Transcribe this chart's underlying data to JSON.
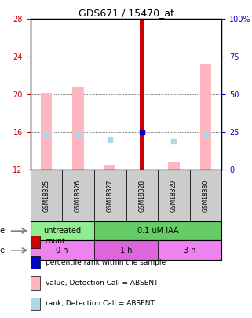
{
  "title": "GDS671 / 15470_at",
  "samples": [
    "GSM18325",
    "GSM18326",
    "GSM18327",
    "GSM18328",
    "GSM18329",
    "GSM18330"
  ],
  "ylim_left": [
    12,
    28
  ],
  "ylim_right": [
    0,
    100
  ],
  "yticks_left": [
    12,
    16,
    20,
    24,
    28
  ],
  "yticks_right": [
    0,
    25,
    50,
    75,
    100
  ],
  "bar_values_pink": [
    20.1,
    20.8,
    12.5,
    null,
    12.8,
    23.2
  ],
  "bar_values_pink_bottom": [
    12,
    12,
    12,
    null,
    12,
    12
  ],
  "bar_values_red": [
    null,
    null,
    null,
    28.0,
    null,
    null
  ],
  "bar_values_red_bottom": [
    null,
    null,
    null,
    12,
    null,
    null
  ],
  "dot_blue_dark": [
    null,
    null,
    null,
    16.0,
    null,
    null
  ],
  "dot_blue_light_y": [
    15.5,
    15.5,
    14.8,
    null,
    14.5,
    15.5
  ],
  "dot_blue_light_rank": [
    24,
    24,
    20,
    null,
    19,
    24
  ],
  "dose_groups": [
    {
      "label": "untreated",
      "start": 0,
      "end": 2,
      "color": "#90EE90"
    },
    {
      "label": "0.1 uM IAA",
      "start": 2,
      "end": 6,
      "color": "#66CC66"
    }
  ],
  "time_groups": [
    {
      "label": "0 h",
      "start": 0,
      "end": 2,
      "color": "#EE82EE"
    },
    {
      "label": "1 h",
      "start": 2,
      "end": 4,
      "color": "#DD66DD"
    },
    {
      "label": "3 h",
      "start": 4,
      "end": 6,
      "color": "#EE82EE"
    }
  ],
  "legend_items": [
    {
      "color": "#CC0000",
      "label": "count"
    },
    {
      "color": "#0000CC",
      "label": "percentile rank within the sample"
    },
    {
      "color": "#FFB6C1",
      "label": "value, Detection Call = ABSENT"
    },
    {
      "color": "#ADD8E6",
      "label": "rank, Detection Call = ABSENT"
    }
  ],
  "bar_width": 0.4,
  "red_bar_width": 0.15,
  "pink_bar_width": 0.35,
  "gridcolor": "#000000",
  "left_axis_color": "#CC0000",
  "right_axis_color": "#0000CC"
}
